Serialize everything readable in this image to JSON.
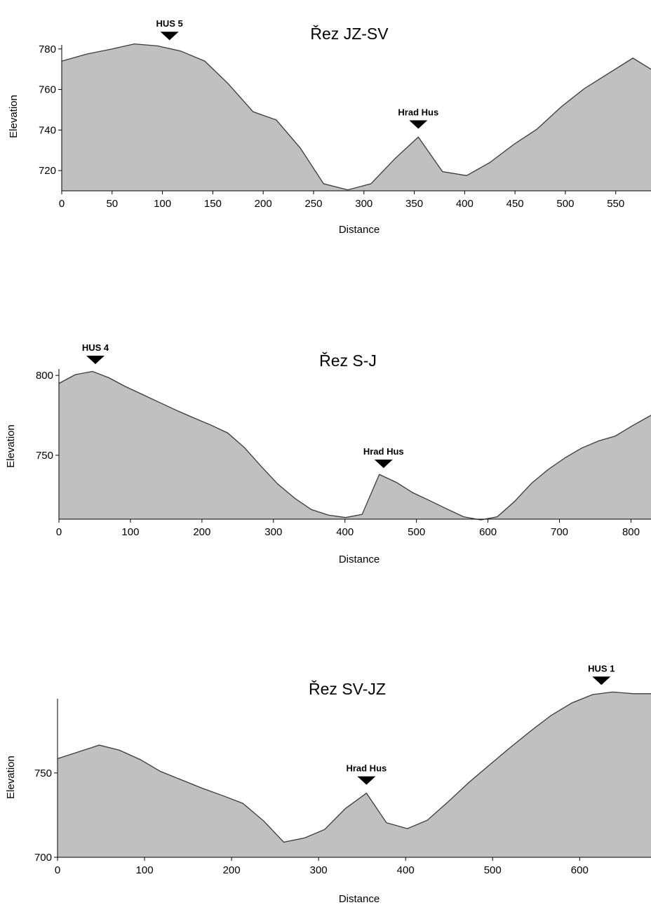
{
  "chart_data": [
    {
      "type": "area",
      "title": "Řez JZ-SV",
      "xlabel": "Distance",
      "ylabel": "Elevation",
      "xlim": [
        0,
        585
      ],
      "ylim": [
        710,
        782
      ],
      "xticks": [
        0,
        50,
        100,
        150,
        200,
        250,
        300,
        350,
        400,
        450,
        500,
        550
      ],
      "yticks": [
        720,
        740,
        760,
        780
      ],
      "grid": false,
      "fill_color": "#c0c0c0",
      "x": [
        0,
        25,
        50,
        72,
        95,
        118,
        142,
        165,
        190,
        213,
        237,
        260,
        284,
        307,
        331,
        354,
        378,
        402,
        425,
        449,
        472,
        496,
        519,
        543,
        567,
        585
      ],
      "y": [
        774,
        777.5,
        780,
        782.5,
        781.5,
        779,
        774,
        763,
        749,
        745,
        731,
        713.5,
        710.5,
        713.5,
        726,
        736.5,
        719.5,
        717.5,
        724,
        733,
        740.5,
        751.5,
        760.5,
        768,
        775.5,
        770
      ],
      "markers": [
        {
          "label": "HUS 5",
          "x": 107
        },
        {
          "label": "Hrad Hus",
          "x": 354
        }
      ]
    },
    {
      "type": "area",
      "title": "Řez S-J",
      "xlabel": "Distance",
      "ylabel": "Elevation",
      "xlim": [
        0,
        828
      ],
      "ylim": [
        710,
        804
      ],
      "xticks": [
        0,
        100,
        200,
        300,
        400,
        500,
        600,
        700,
        800
      ],
      "yticks": [
        750,
        800
      ],
      "grid": false,
      "fill_color": "#c0c0c0",
      "x": [
        0,
        23,
        47,
        70,
        93,
        117,
        141,
        165,
        188,
        212,
        236,
        259,
        283,
        306,
        330,
        353,
        377,
        401,
        424,
        448,
        472,
        495,
        519,
        542,
        566,
        590,
        613,
        637,
        661,
        684,
        708,
        731,
        755,
        778,
        802,
        828
      ],
      "y": [
        795,
        800.5,
        802.5,
        798.5,
        793,
        788,
        783,
        778,
        773.5,
        769,
        764,
        755,
        743,
        732,
        723,
        716,
        712.5,
        711,
        713,
        738,
        733,
        726.5,
        721.5,
        716.5,
        711.5,
        709.5,
        711.5,
        721,
        732.5,
        741,
        748.5,
        754.5,
        759,
        762,
        768.5,
        775
      ],
      "markers": [
        {
          "label": "HUS 4",
          "x": 51
        },
        {
          "label": "Hrad Hus",
          "x": 454
        }
      ]
    },
    {
      "type": "area",
      "title": "Řez SV-JZ",
      "xlabel": "Distance",
      "ylabel": "Elevation",
      "xlim": [
        0,
        682
      ],
      "ylim": [
        700,
        794
      ],
      "xticks": [
        0,
        100,
        200,
        300,
        400,
        500,
        600
      ],
      "yticks": [
        700,
        750
      ],
      "grid": false,
      "fill_color": "#c0c0c0",
      "x": [
        0,
        24,
        48,
        71,
        95,
        118,
        142,
        166,
        190,
        213,
        237,
        260,
        284,
        307,
        331,
        355,
        378,
        402,
        425,
        449,
        473,
        497,
        520,
        544,
        567,
        591,
        615,
        638,
        662,
        682
      ],
      "y": [
        758.5,
        762.5,
        766.5,
        763.5,
        758,
        751,
        746,
        741,
        736.5,
        732,
        721.5,
        709,
        711.5,
        716.5,
        729,
        738,
        720.5,
        717,
        722,
        733,
        744.5,
        755,
        765,
        775,
        784,
        791.5,
        796.5,
        798,
        797,
        797
      ],
      "markers": [
        {
          "label": "Hrad Hus",
          "x": 355
        },
        {
          "label": "HUS 1",
          "x": 625
        }
      ]
    }
  ]
}
